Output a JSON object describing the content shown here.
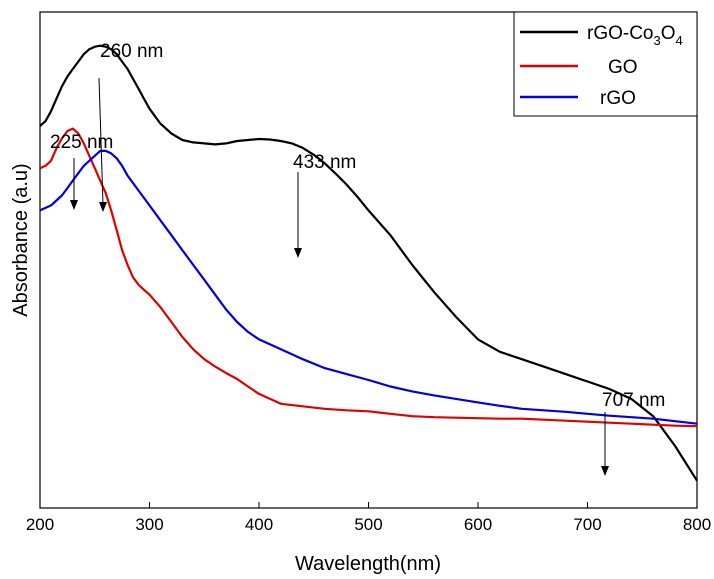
{
  "chart_data": {
    "type": "line",
    "xlabel": "Wavelength(nm)",
    "ylabel": "Absorbance (a.u)",
    "xlim": [
      200,
      800
    ],
    "xticks": [
      "200",
      "300",
      "400",
      "500",
      "600",
      "700",
      "800"
    ],
    "y_ticks_labeled": false,
    "grid": false,
    "legend_position": "top-right",
    "legend_labels": {
      "rgo_co3o4_base": "rGO-Co",
      "rgo_co3o4_sub1": "3",
      "rgo_co3o4_mid": "O",
      "rgo_co3o4_sub2": "4",
      "go": "GO",
      "rgo": "rGO"
    },
    "series": [
      {
        "name": "rGO-Co3O4",
        "color": "#000000",
        "x": [
          200,
          205,
          210,
          215,
          220,
          225,
          230,
          235,
          240,
          245,
          250,
          255,
          260,
          265,
          270,
          275,
          280,
          285,
          290,
          295,
          300,
          310,
          320,
          330,
          340,
          350,
          360,
          370,
          380,
          390,
          400,
          410,
          420,
          430,
          440,
          450,
          460,
          470,
          480,
          490,
          500,
          520,
          540,
          560,
          580,
          600,
          620,
          640,
          660,
          680,
          700,
          720,
          740,
          760,
          780,
          800
        ],
        "y": [
          0.77,
          0.78,
          0.8,
          0.825,
          0.85,
          0.87,
          0.885,
          0.9,
          0.915,
          0.925,
          0.93,
          0.932,
          0.93,
          0.925,
          0.915,
          0.9,
          0.885,
          0.865,
          0.845,
          0.825,
          0.805,
          0.775,
          0.755,
          0.742,
          0.737,
          0.735,
          0.733,
          0.735,
          0.74,
          0.742,
          0.744,
          0.743,
          0.74,
          0.735,
          0.726,
          0.712,
          0.695,
          0.674,
          0.652,
          0.627,
          0.6,
          0.55,
          0.49,
          0.435,
          0.385,
          0.34,
          0.315,
          0.3,
          0.285,
          0.27,
          0.255,
          0.24,
          0.22,
          0.185,
          0.125,
          0.055
        ]
      },
      {
        "name": "GO",
        "color": "#e00000",
        "x": [
          200,
          205,
          210,
          215,
          220,
          225,
          230,
          235,
          240,
          245,
          250,
          255,
          260,
          265,
          270,
          275,
          280,
          285,
          290,
          295,
          300,
          310,
          320,
          330,
          340,
          350,
          360,
          370,
          380,
          390,
          400,
          420,
          440,
          460,
          480,
          500,
          520,
          540,
          560,
          580,
          600,
          620,
          640,
          660,
          680,
          700,
          720,
          740,
          760,
          780,
          800
        ],
        "y": [
          0.685,
          0.69,
          0.7,
          0.725,
          0.745,
          0.76,
          0.765,
          0.755,
          0.735,
          0.71,
          0.685,
          0.66,
          0.635,
          0.6,
          0.56,
          0.52,
          0.49,
          0.465,
          0.45,
          0.44,
          0.43,
          0.405,
          0.375,
          0.345,
          0.32,
          0.3,
          0.285,
          0.272,
          0.26,
          0.245,
          0.23,
          0.21,
          0.205,
          0.2,
          0.197,
          0.195,
          0.19,
          0.185,
          0.183,
          0.182,
          0.181,
          0.18,
          0.18,
          0.178,
          0.176,
          0.174,
          0.172,
          0.17,
          0.168,
          0.166,
          0.165
        ]
      },
      {
        "name": "rGO",
        "color": "#0000e0",
        "x": [
          200,
          205,
          210,
          215,
          220,
          225,
          230,
          235,
          240,
          245,
          250,
          255,
          260,
          265,
          270,
          275,
          280,
          290,
          300,
          310,
          320,
          330,
          340,
          350,
          360,
          370,
          380,
          390,
          400,
          420,
          440,
          460,
          480,
          500,
          520,
          540,
          560,
          580,
          600,
          620,
          640,
          660,
          680,
          700,
          720,
          740,
          760,
          780,
          800
        ],
        "y": [
          0.6,
          0.605,
          0.61,
          0.62,
          0.63,
          0.645,
          0.66,
          0.675,
          0.69,
          0.7,
          0.71,
          0.72,
          0.72,
          0.715,
          0.705,
          0.69,
          0.67,
          0.64,
          0.61,
          0.58,
          0.55,
          0.52,
          0.49,
          0.46,
          0.43,
          0.4,
          0.375,
          0.355,
          0.34,
          0.32,
          0.3,
          0.282,
          0.27,
          0.258,
          0.245,
          0.235,
          0.227,
          0.22,
          0.213,
          0.206,
          0.2,
          0.197,
          0.194,
          0.19,
          0.186,
          0.183,
          0.18,
          0.175,
          0.17
        ]
      }
    ],
    "annotations": [
      {
        "text": "260 nm",
        "x": 260
      },
      {
        "text": "225 nm",
        "x": 225
      },
      {
        "text": "433 nm",
        "x": 433
      },
      {
        "text": "707 nm",
        "x": 707
      }
    ]
  }
}
